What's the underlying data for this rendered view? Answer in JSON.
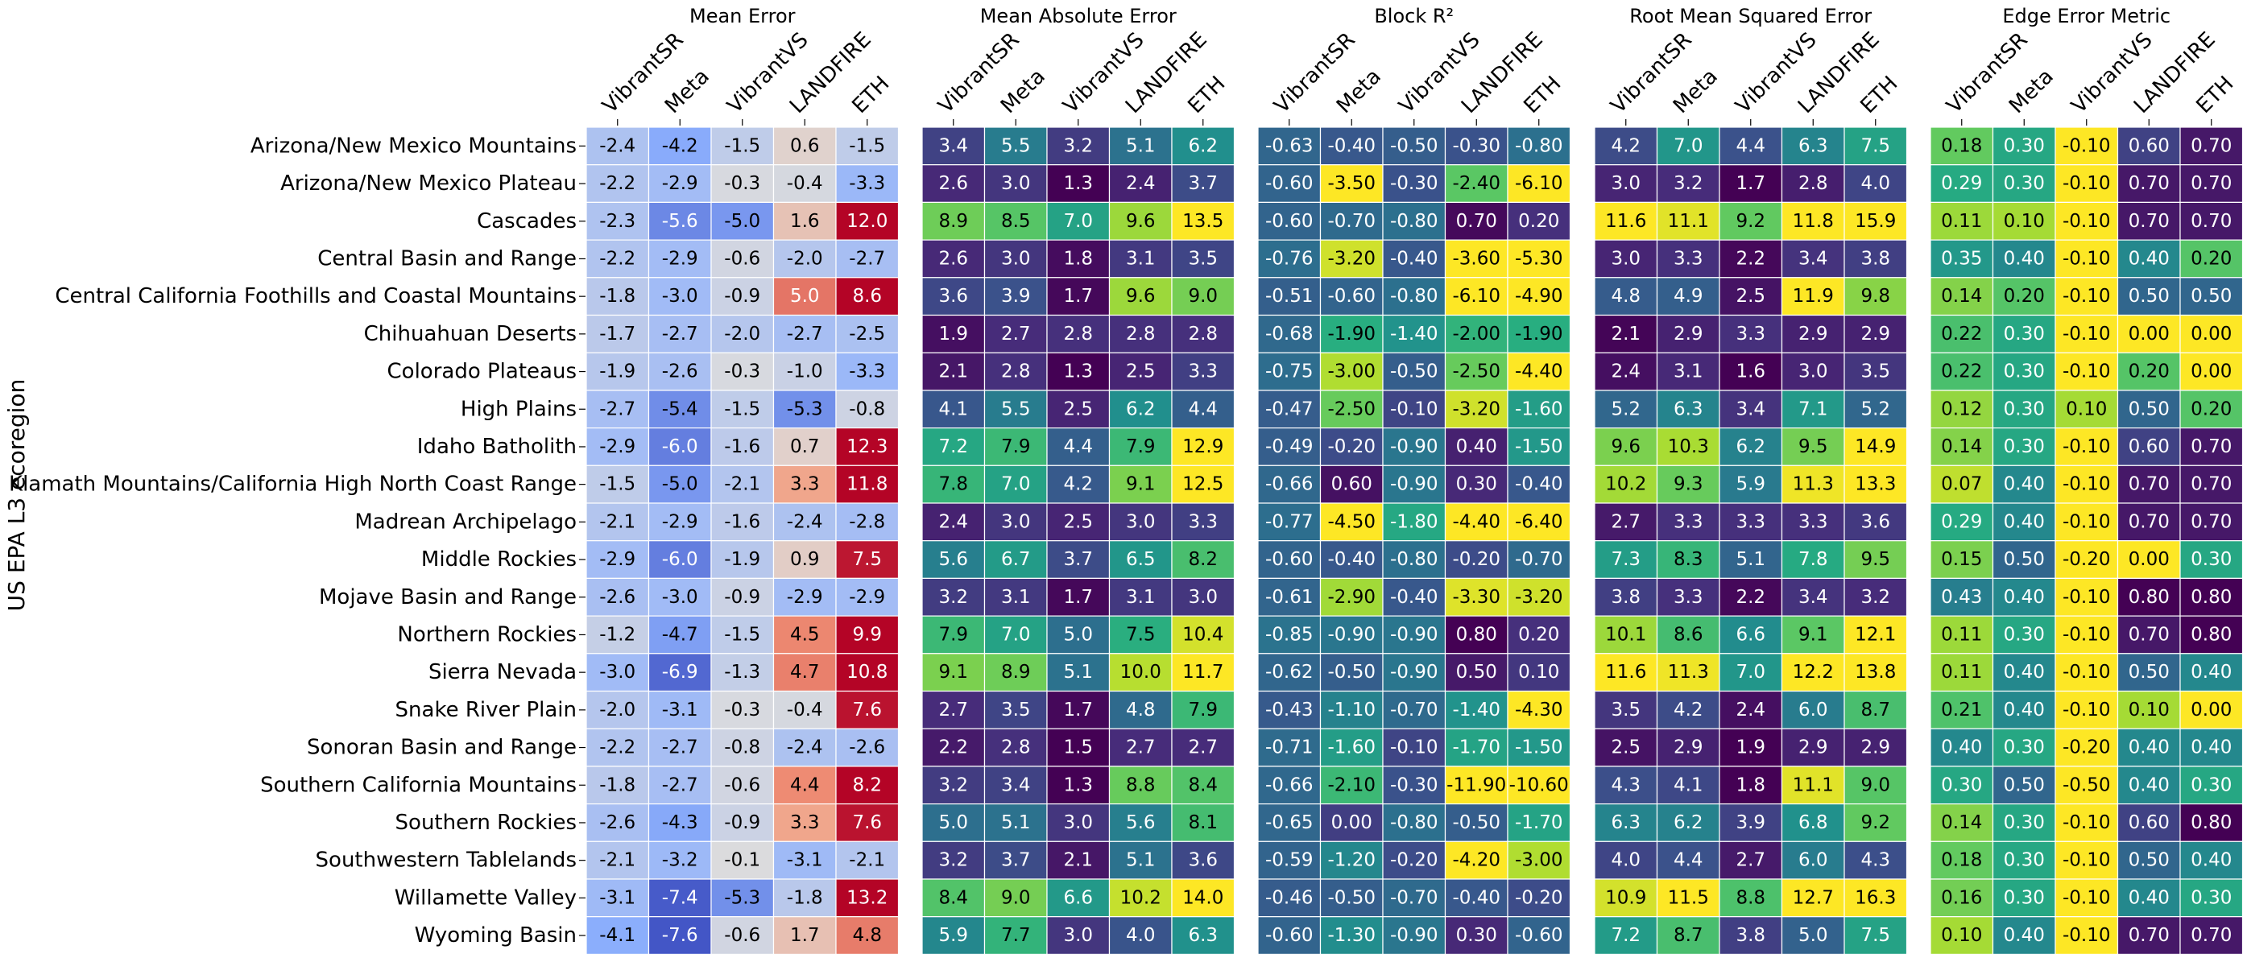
{
  "chart_data": {
    "type": "heatmap",
    "ylabel": "US EPA L3 ecoregion",
    "rows": [
      "Arizona/New Mexico Mountains",
      "Arizona/New Mexico Plateau",
      "Cascades",
      "Central Basin and Range",
      "Central California Foothills and Coastal Mountains",
      "Chihuahuan Deserts",
      "Colorado Plateaus",
      "High Plains",
      "Idaho Batholith",
      "Klamath Mountains/California High North Coast Range",
      "Madrean Archipelago",
      "Middle Rockies",
      "Mojave Basin and Range",
      "Northern Rockies",
      "Sierra Nevada",
      "Snake River Plain",
      "Sonoran Basin and Range",
      "Southern California Mountains",
      "Southern Rockies",
      "Southwestern Tablelands",
      "Willamette Valley",
      "Wyoming Basin"
    ],
    "columns": [
      "VibrantSR",
      "Meta",
      "VibrantVS",
      "LANDFIRE",
      "ETH"
    ],
    "panels": [
      {
        "title": "Mean Error",
        "colormap": "coolwarm",
        "vmin": -8,
        "vmax": 8,
        "decimals": 1,
        "values": [
          [
            -2.4,
            -4.2,
            -1.5,
            0.6,
            -1.5
          ],
          [
            -2.2,
            -2.9,
            -0.3,
            -0.4,
            -3.3
          ],
          [
            -2.3,
            -5.6,
            -5.0,
            1.6,
            12.0
          ],
          [
            -2.2,
            -2.9,
            -0.6,
            -2.0,
            -2.7
          ],
          [
            -1.8,
            -3.0,
            -0.9,
            5.0,
            8.6
          ],
          [
            -1.7,
            -2.7,
            -2.0,
            -2.7,
            -2.5
          ],
          [
            -1.9,
            -2.6,
            -0.3,
            -1.0,
            -3.3
          ],
          [
            -2.7,
            -5.4,
            -1.5,
            -5.3,
            -0.8
          ],
          [
            -2.9,
            -6.0,
            -1.6,
            0.7,
            12.3
          ],
          [
            -1.5,
            -5.0,
            -2.1,
            3.3,
            11.8
          ],
          [
            -2.1,
            -2.9,
            -1.6,
            -2.4,
            -2.8
          ],
          [
            -2.9,
            -6.0,
            -1.9,
            0.9,
            7.5
          ],
          [
            -2.6,
            -3.0,
            -0.9,
            -2.9,
            -2.9
          ],
          [
            -1.2,
            -4.7,
            -1.5,
            4.5,
            9.9
          ],
          [
            -3.0,
            -6.9,
            -1.3,
            4.7,
            10.8
          ],
          [
            -2.0,
            -3.1,
            -0.3,
            -0.4,
            7.6
          ],
          [
            -2.2,
            -2.7,
            -0.8,
            -2.4,
            -2.6
          ],
          [
            -1.8,
            -2.7,
            -0.6,
            4.4,
            8.2
          ],
          [
            -2.6,
            -4.3,
            -0.9,
            3.3,
            7.6
          ],
          [
            -2.1,
            -3.2,
            -0.1,
            -3.1,
            -2.1
          ],
          [
            -3.1,
            -7.4,
            -5.3,
            -1.8,
            13.2
          ],
          [
            -4.1,
            -7.6,
            -0.6,
            1.7,
            4.8
          ]
        ]
      },
      {
        "title": "Mean Absolute Error",
        "colormap": "viridis",
        "vmin": 1.5,
        "vmax": 11,
        "decimals": 1,
        "values": [
          [
            3.4,
            5.5,
            3.2,
            5.1,
            6.2
          ],
          [
            2.6,
            3.0,
            1.3,
            2.4,
            3.7
          ],
          [
            8.9,
            8.5,
            7.0,
            9.6,
            13.5
          ],
          [
            2.6,
            3.0,
            1.8,
            3.1,
            3.5
          ],
          [
            3.6,
            3.9,
            1.7,
            9.6,
            9.0
          ],
          [
            1.9,
            2.7,
            2.8,
            2.8,
            2.8
          ],
          [
            2.1,
            2.8,
            1.3,
            2.5,
            3.3
          ],
          [
            4.1,
            5.5,
            2.5,
            6.2,
            4.4
          ],
          [
            7.2,
            7.9,
            4.4,
            7.9,
            12.9
          ],
          [
            7.8,
            7.0,
            4.2,
            9.1,
            12.5
          ],
          [
            2.4,
            3.0,
            2.5,
            3.0,
            3.3
          ],
          [
            5.6,
            6.7,
            3.7,
            6.5,
            8.2
          ],
          [
            3.2,
            3.1,
            1.7,
            3.1,
            3.0
          ],
          [
            7.9,
            7.0,
            5.0,
            7.5,
            10.4
          ],
          [
            9.1,
            8.9,
            5.1,
            10.0,
            11.7
          ],
          [
            2.7,
            3.5,
            1.7,
            4.8,
            7.9
          ],
          [
            2.2,
            2.8,
            1.5,
            2.7,
            2.7
          ],
          [
            3.2,
            3.4,
            1.3,
            8.8,
            8.4
          ],
          [
            5.0,
            5.1,
            3.0,
            5.6,
            8.1
          ],
          [
            3.2,
            3.7,
            2.1,
            5.1,
            3.6
          ],
          [
            8.4,
            9.0,
            6.6,
            10.2,
            14.0
          ],
          [
            5.9,
            7.7,
            3.0,
            4.0,
            6.3
          ]
        ]
      },
      {
        "title": "Block R²",
        "colormap": "viridis_r",
        "vmin": -3.5,
        "vmax": 0.8,
        "decimals": 2,
        "values": [
          [
            -0.63,
            -0.4,
            -0.5,
            -0.3,
            -0.8
          ],
          [
            -0.6,
            -3.5,
            -0.3,
            -2.4,
            -6.1
          ],
          [
            -0.6,
            -0.7,
            -0.8,
            0.7,
            0.2
          ],
          [
            -0.76,
            -3.2,
            -0.4,
            -3.6,
            -5.3
          ],
          [
            -0.51,
            -0.6,
            -0.8,
            -6.1,
            -4.9
          ],
          [
            -0.68,
            -1.9,
            -1.4,
            -2.0,
            -1.9
          ],
          [
            -0.75,
            -3.0,
            -0.5,
            -2.5,
            -4.4
          ],
          [
            -0.47,
            -2.5,
            -0.1,
            -3.2,
            -1.6
          ],
          [
            -0.49,
            -0.2,
            -0.9,
            0.4,
            -1.5
          ],
          [
            -0.66,
            0.6,
            -0.9,
            0.3,
            -0.4
          ],
          [
            -0.77,
            -4.5,
            -1.8,
            -4.4,
            -6.4
          ],
          [
            -0.6,
            -0.4,
            -0.8,
            -0.2,
            -0.7
          ],
          [
            -0.61,
            -2.9,
            -0.4,
            -3.3,
            -3.2
          ],
          [
            -0.85,
            -0.9,
            -0.9,
            0.8,
            0.2
          ],
          [
            -0.62,
            -0.5,
            -0.9,
            0.5,
            0.1
          ],
          [
            -0.43,
            -1.1,
            -0.7,
            -1.4,
            -4.3
          ],
          [
            -0.71,
            -1.6,
            -0.1,
            -1.7,
            -1.5
          ],
          [
            -0.66,
            -2.1,
            -0.3,
            -11.9,
            -10.6
          ],
          [
            -0.65,
            -0.0,
            -0.8,
            -0.5,
            -1.7
          ],
          [
            -0.59,
            -1.2,
            -0.2,
            -4.2,
            -3.0
          ],
          [
            -0.46,
            -0.5,
            -0.7,
            -0.4,
            -0.2
          ],
          [
            -0.6,
            -1.3,
            -0.9,
            0.3,
            -0.6
          ]
        ]
      },
      {
        "title": "Root Mean Squared Error",
        "colormap": "viridis",
        "vmin": 2,
        "vmax": 11.5,
        "decimals": 1,
        "values": [
          [
            4.2,
            7.0,
            4.4,
            6.3,
            7.5
          ],
          [
            3.0,
            3.2,
            1.7,
            2.8,
            4.0
          ],
          [
            11.6,
            11.1,
            9.2,
            11.8,
            15.9
          ],
          [
            3.0,
            3.3,
            2.2,
            3.4,
            3.8
          ],
          [
            4.8,
            4.9,
            2.5,
            11.9,
            9.8
          ],
          [
            2.1,
            2.9,
            3.3,
            2.9,
            2.9
          ],
          [
            2.4,
            3.1,
            1.6,
            3.0,
            3.5
          ],
          [
            5.2,
            6.3,
            3.4,
            7.1,
            5.2
          ],
          [
            9.6,
            10.3,
            6.2,
            9.5,
            14.9
          ],
          [
            10.2,
            9.3,
            5.9,
            11.3,
            13.3
          ],
          [
            2.7,
            3.3,
            3.3,
            3.3,
            3.6
          ],
          [
            7.3,
            8.3,
            5.1,
            7.8,
            9.5
          ],
          [
            3.8,
            3.3,
            2.2,
            3.4,
            3.2
          ],
          [
            10.1,
            8.6,
            6.6,
            9.1,
            12.1
          ],
          [
            11.6,
            11.3,
            7.0,
            12.2,
            13.8
          ],
          [
            3.5,
            4.2,
            2.4,
            6.0,
            8.7
          ],
          [
            2.5,
            2.9,
            1.9,
            2.9,
            2.9
          ],
          [
            4.3,
            4.1,
            1.8,
            11.1,
            9.0
          ],
          [
            6.3,
            6.2,
            3.9,
            6.8,
            9.2
          ],
          [
            4.0,
            4.4,
            2.7,
            6.0,
            4.3
          ],
          [
            10.9,
            11.5,
            8.8,
            12.7,
            16.3
          ],
          [
            7.2,
            8.7,
            3.8,
            5.0,
            7.5
          ]
        ]
      },
      {
        "title": "Edge Error Metric",
        "colormap": "viridis_r",
        "vmin": 0.0,
        "vmax": 0.75,
        "decimals": 2,
        "values": [
          [
            0.18,
            0.3,
            -0.1,
            0.6,
            0.7
          ],
          [
            0.29,
            0.3,
            -0.1,
            0.7,
            0.7
          ],
          [
            0.11,
            0.1,
            -0.1,
            0.7,
            0.7
          ],
          [
            0.35,
            0.4,
            -0.1,
            0.4,
            0.2
          ],
          [
            0.14,
            0.2,
            -0.1,
            0.5,
            0.5
          ],
          [
            0.22,
            0.3,
            -0.1,
            0.0,
            0.0
          ],
          [
            0.22,
            0.3,
            -0.1,
            0.2,
            0.0
          ],
          [
            0.12,
            0.3,
            0.1,
            0.5,
            0.2
          ],
          [
            0.14,
            0.3,
            -0.1,
            0.6,
            0.7
          ],
          [
            0.07,
            0.4,
            -0.1,
            0.7,
            0.7
          ],
          [
            0.29,
            0.4,
            -0.1,
            0.7,
            0.7
          ],
          [
            0.15,
            0.5,
            -0.2,
            0.0,
            0.3
          ],
          [
            0.43,
            0.4,
            -0.1,
            0.8,
            0.8
          ],
          [
            0.11,
            0.3,
            -0.1,
            0.7,
            0.8
          ],
          [
            0.11,
            0.4,
            -0.1,
            0.5,
            0.4
          ],
          [
            0.21,
            0.4,
            -0.1,
            0.1,
            0.0
          ],
          [
            0.4,
            0.3,
            -0.2,
            0.4,
            0.4
          ],
          [
            0.3,
            0.5,
            -0.5,
            0.4,
            0.3
          ],
          [
            0.14,
            0.3,
            -0.1,
            0.6,
            0.8
          ],
          [
            0.18,
            0.3,
            -0.1,
            0.5,
            0.4
          ],
          [
            0.16,
            0.3,
            -0.1,
            0.4,
            0.3
          ],
          [
            0.1,
            0.4,
            -0.1,
            0.7,
            0.7
          ]
        ]
      }
    ]
  }
}
